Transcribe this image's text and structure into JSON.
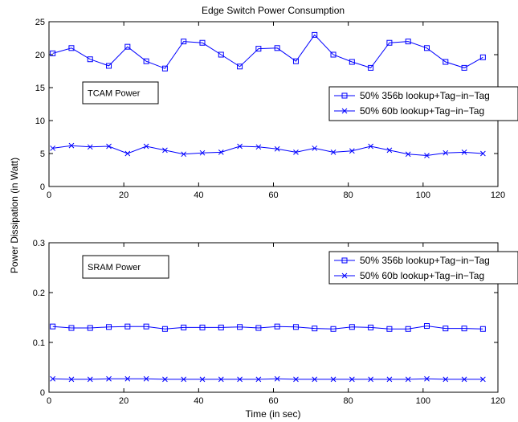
{
  "figure": {
    "title": "Edge Switch Power Consumption",
    "ylabel": "Power Dissipation (in Watt)",
    "xlabel": "Time (in sec)"
  },
  "colors": {
    "series": "#0000ff",
    "axis": "#000000"
  },
  "chart_data": [
    {
      "type": "line",
      "panel": "top",
      "annotation": "TCAM Power",
      "xlim": [
        0,
        120
      ],
      "ylim": [
        0,
        25
      ],
      "xticks": [
        0,
        20,
        40,
        60,
        80,
        100,
        120
      ],
      "yticks": [
        0,
        5,
        10,
        15,
        20,
        25
      ],
      "ytick_labels": [
        "0",
        "5",
        "10",
        "15",
        "20",
        "25"
      ],
      "legend_position": "right",
      "x": [
        1,
        6,
        11,
        16,
        21,
        26,
        31,
        36,
        41,
        46,
        51,
        56,
        61,
        66,
        71,
        76,
        81,
        86,
        91,
        96,
        101,
        106,
        111,
        116
      ],
      "series": [
        {
          "name": "50% 356b lookup+Tag−in−Tag",
          "marker": "square",
          "values": [
            20.2,
            21.0,
            19.3,
            18.3,
            21.2,
            19.0,
            17.9,
            22.0,
            21.8,
            20.0,
            18.2,
            20.9,
            21.0,
            19.0,
            23.0,
            20.0,
            18.9,
            18.0,
            21.8,
            22.0,
            21.0,
            18.9,
            18.0,
            19.6
          ]
        },
        {
          "name": "50% 60b lookup+Tag−in−Tag",
          "marker": "x",
          "values": [
            5.8,
            6.2,
            6.0,
            6.1,
            5.0,
            6.1,
            5.5,
            4.9,
            5.1,
            5.2,
            6.1,
            6.0,
            5.7,
            5.2,
            5.8,
            5.2,
            5.4,
            6.1,
            5.5,
            4.9,
            4.7,
            5.1,
            5.2,
            5.0
          ]
        }
      ]
    },
    {
      "type": "line",
      "panel": "bottom",
      "annotation": "SRAM Power",
      "xlim": [
        0,
        120
      ],
      "ylim": [
        0,
        0.3
      ],
      "xticks": [
        0,
        20,
        40,
        60,
        80,
        100,
        120
      ],
      "yticks": [
        0,
        0.1,
        0.2,
        0.3
      ],
      "ytick_labels": [
        "0",
        "0.1",
        "0.2",
        "0.3"
      ],
      "legend_position": "right",
      "x": [
        1,
        6,
        11,
        16,
        21,
        26,
        31,
        36,
        41,
        46,
        51,
        56,
        61,
        66,
        71,
        76,
        81,
        86,
        91,
        96,
        101,
        106,
        111,
        116
      ],
      "series": [
        {
          "name": "50% 356b lookup+Tag−in−Tag",
          "marker": "square",
          "values": [
            0.132,
            0.129,
            0.129,
            0.131,
            0.132,
            0.132,
            0.127,
            0.13,
            0.13,
            0.13,
            0.131,
            0.129,
            0.132,
            0.131,
            0.128,
            0.127,
            0.131,
            0.13,
            0.127,
            0.127,
            0.133,
            0.128,
            0.128,
            0.127
          ]
        },
        {
          "name": "50% 60b lookup+Tag−in−Tag",
          "marker": "x",
          "values": [
            0.027,
            0.026,
            0.026,
            0.027,
            0.027,
            0.027,
            0.026,
            0.026,
            0.026,
            0.026,
            0.026,
            0.026,
            0.027,
            0.026,
            0.026,
            0.026,
            0.026,
            0.026,
            0.026,
            0.026,
            0.027,
            0.026,
            0.026,
            0.026
          ]
        }
      ]
    }
  ]
}
